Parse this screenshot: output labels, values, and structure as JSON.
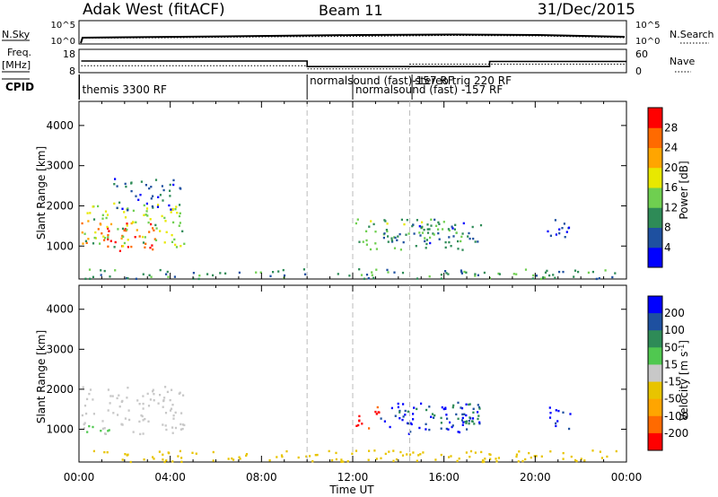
{
  "header": {
    "station": "Adak West (fitACF)",
    "beam": "Beam 11",
    "date": "31/Dec/2015"
  },
  "panel_labels": {
    "nsky": "N.Sky",
    "nsearch": "N.Search",
    "freq_top": "Freq.",
    "freq_unit": "[MHz]",
    "nave": "Nave",
    "cpid": "CPID",
    "nsky_ticks": [
      "10^5",
      "10^0"
    ],
    "nsearch_ticks": [
      "10^5",
      "10^0"
    ],
    "freq_ticks": [
      "18",
      "8"
    ],
    "nave_ticks": [
      "60",
      "0"
    ]
  },
  "cpid_labels": [
    {
      "text": "themis 3300 RF",
      "t": 0.02
    },
    {
      "text": "normalsound (fast)-157 RF",
      "t": 10.0
    },
    {
      "text": "normalsound (fast) -157 RF",
      "t": 12.0
    },
    {
      "text": "stereo trig 220 RF",
      "t": 14.6
    }
  ],
  "colors": {
    "power": [
      "#0000ff",
      "#1e50a0",
      "#2e8b57",
      "#6fcf50",
      "#e8e800",
      "#ffa500",
      "#ff6a00",
      "#ff0000"
    ],
    "velocity": [
      "#ff0000",
      "#ff6a00",
      "#ffa500",
      "#e8c400",
      "#c8c8c8",
      "#50c850",
      "#2e8b57",
      "#1e50a0",
      "#0000ff"
    ]
  },
  "chart_data": [
    {
      "type": "line",
      "name": "frequency_nave_panel",
      "xlabel": "",
      "xlim": [
        0,
        24
      ],
      "freq_mhz": [
        {
          "t": 0.1,
          "v": 13.0
        },
        {
          "t": 10.0,
          "v": 13.0
        },
        {
          "t": 10.0,
          "v": 10.6
        },
        {
          "t": 18.0,
          "v": 10.6
        },
        {
          "t": 18.0,
          "v": 12.8
        },
        {
          "t": 24.0,
          "v": 12.8
        }
      ],
      "nave": [
        {
          "t": 0.1,
          "v": 18
        },
        {
          "t": 10.0,
          "v": 18
        },
        {
          "t": 10.0,
          "v": 10
        },
        {
          "t": 14.5,
          "v": 10
        },
        {
          "t": 14.5,
          "v": 22
        },
        {
          "t": 24.0,
          "v": 22
        }
      ]
    },
    {
      "type": "heatmap",
      "name": "power_panel",
      "ylabel": "Slant Range [km]",
      "ylim": [
        180,
        4600
      ],
      "yticks": [
        1000,
        2000,
        3000,
        4000
      ],
      "colorbar_label": "Power [dB]",
      "colorbar_ticks": [
        4,
        8,
        12,
        16,
        20,
        24,
        28
      ],
      "colorbar_range": [
        0,
        32
      ],
      "dashed_times": [
        10.0,
        12.0,
        14.5
      ],
      "regions": [
        {
          "t0": 0.1,
          "t1": 3.5,
          "r0": 900,
          "r1": 1650,
          "v": 26
        },
        {
          "t0": 0.1,
          "t1": 4.6,
          "r0": 1000,
          "r1": 2100,
          "v": 15
        },
        {
          "t0": 1.5,
          "t1": 4.5,
          "r0": 1900,
          "r1": 2700,
          "v": 6
        },
        {
          "t0": 12.0,
          "t1": 16.8,
          "r0": 900,
          "r1": 1700,
          "v": 13
        },
        {
          "t0": 13.3,
          "t1": 17.7,
          "r0": 1100,
          "r1": 1700,
          "v": 7
        },
        {
          "t0": 20.5,
          "t1": 21.5,
          "r0": 1000,
          "r1": 1700,
          "v": 5
        },
        {
          "t0": 0.1,
          "t1": 23.8,
          "r0": 200,
          "r1": 450,
          "v": 10
        }
      ]
    },
    {
      "type": "heatmap",
      "name": "velocity_panel",
      "ylabel": "Slant Range [km]",
      "xlabel": "Time UT",
      "xlim": [
        0,
        24
      ],
      "xticks": [
        "00:00",
        "04:00",
        "08:00",
        "12:00",
        "16:00",
        "20:00",
        "00:00"
      ],
      "ylim": [
        180,
        4600
      ],
      "yticks": [
        1000,
        2000,
        3000,
        4000
      ],
      "colorbar_label": "Velocity [m s^-1]",
      "colorbar_ticks": [
        "200",
        "100",
        "50",
        "15",
        "-15",
        "-50",
        "-100",
        "-200"
      ],
      "dashed_times": [
        10.0,
        12.0,
        14.5
      ],
      "regions": [
        {
          "t0": 0.1,
          "t1": 4.6,
          "r0": 900,
          "r1": 2100,
          "v": 0
        },
        {
          "t0": 0.1,
          "t1": 2.0,
          "r0": 950,
          "r1": 1150,
          "v": 40
        },
        {
          "t0": 12.0,
          "t1": 13.2,
          "r0": 1000,
          "r1": 1600,
          "v": -220
        },
        {
          "t0": 13.2,
          "t1": 17.6,
          "r0": 900,
          "r1": 1700,
          "v": 210
        },
        {
          "t0": 14.0,
          "t1": 17.6,
          "r0": 1150,
          "r1": 1700,
          "v": 80
        },
        {
          "t0": 20.5,
          "t1": 21.6,
          "r0": 1000,
          "r1": 1600,
          "v": 220
        },
        {
          "t0": 0.1,
          "t1": 23.8,
          "r0": 200,
          "r1": 500,
          "v": -40
        }
      ]
    }
  ]
}
